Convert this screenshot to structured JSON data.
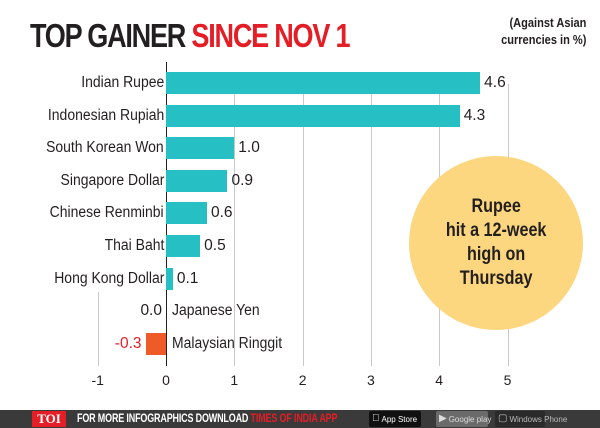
{
  "header": {
    "title_part1": "TOP GAINER",
    "title_part2": "SINCE NOV 1",
    "subtitle_line1": "(Against Asian",
    "subtitle_line2": "currencies in %)"
  },
  "callout": {
    "line1": "Rupee",
    "line2": "hit a 12-week",
    "line3": "high on",
    "line4": "Thursday"
  },
  "footer": {
    "logo": "TOI",
    "text": "FOR MORE  INFOGRAPHICS DOWNLOAD ",
    "app_name": "TIMES OF INDIA  APP",
    "badges": [
      {
        "icon": "apple-icon",
        "label": "App Store"
      },
      {
        "icon": "google-play-icon",
        "label": "Google play"
      },
      {
        "icon": "windows-icon",
        "label": "Windows Phone"
      }
    ]
  },
  "colors": {
    "positive_bar": "#26bfc4",
    "negative_bar": "#f05a28",
    "accent_red": "#e41e26",
    "callout_bg": "#fcd77f",
    "footer_bg": "#3a3a3a"
  },
  "chart_data": {
    "type": "bar",
    "orientation": "horizontal",
    "title": "TOP GAINER SINCE NOV 1",
    "subtitle": "(Against Asian currencies in %)",
    "xlabel": "",
    "ylabel": "",
    "xlim": [
      -1,
      5
    ],
    "xticks": [
      "-1",
      "0",
      "1",
      "2",
      "3",
      "4",
      "5"
    ],
    "grid": true,
    "legend": null,
    "categories": [
      "Indian Rupee",
      "Indonesian Rupiah",
      "South Korean Won",
      "Singapore Dollar",
      "Chinese Renminbi",
      "Thai Baht",
      "Hong Kong Dollar",
      "Japanese Yen",
      "Malaysian Ringgit"
    ],
    "values": [
      4.6,
      4.3,
      1.0,
      0.9,
      0.6,
      0.5,
      0.1,
      0.0,
      -0.3
    ],
    "value_labels": [
      "4.6",
      "4.3",
      "1.0",
      "0.9",
      "0.6",
      "0.5",
      "0.1",
      "0.0",
      "-0.3"
    ],
    "annotation": "Rupee hit a 12-week high on Thursday"
  }
}
